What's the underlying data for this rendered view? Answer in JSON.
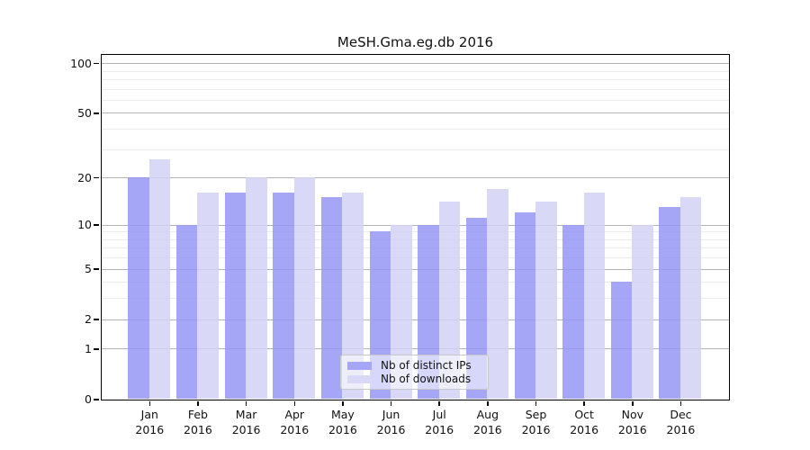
{
  "chart_data": {
    "type": "bar",
    "title": "MeSH.Gma.eg.db 2016",
    "months": [
      "Jan",
      "Feb",
      "Mar",
      "Apr",
      "May",
      "Jun",
      "Jul",
      "Aug",
      "Sep",
      "Oct",
      "Nov",
      "Dec"
    ],
    "year_label": "2016",
    "categories": [
      "Jan 2016",
      "Feb 2016",
      "Mar 2016",
      "Apr 2016",
      "May 2016",
      "Jun 2016",
      "Jul 2016",
      "Aug 2016",
      "Sep 2016",
      "Oct 2016",
      "Nov 2016",
      "Dec 2016"
    ],
    "series": [
      {
        "name": "Nb of distinct IPs",
        "color": "#a6a6f7",
        "values": [
          20,
          10,
          16,
          16,
          15,
          9,
          10,
          11,
          12,
          10,
          4,
          13
        ]
      },
      {
        "name": "Nb of downloads",
        "color": "#d9d9f7",
        "values": [
          26,
          16,
          20,
          20,
          16,
          10,
          14,
          17,
          14,
          16,
          10,
          15
        ]
      }
    ],
    "yscale": "log1p",
    "ylim": [
      0,
      113
    ],
    "y_tick_labels": [
      0,
      1,
      2,
      5,
      10,
      20,
      50,
      100
    ],
    "y_minor_gridlines": [
      3,
      4,
      6,
      7,
      8,
      9,
      30,
      40,
      60,
      70,
      80,
      90
    ],
    "grid": true,
    "legend_position": "lower center",
    "xlabel": "",
    "ylabel": ""
  },
  "colors": {
    "axis": "#000000",
    "grid_major": "#b4b4b4",
    "grid_minor": "#ececec",
    "background": "#ffffff",
    "text": "#111111",
    "legend_border": "#c8c8c8"
  }
}
